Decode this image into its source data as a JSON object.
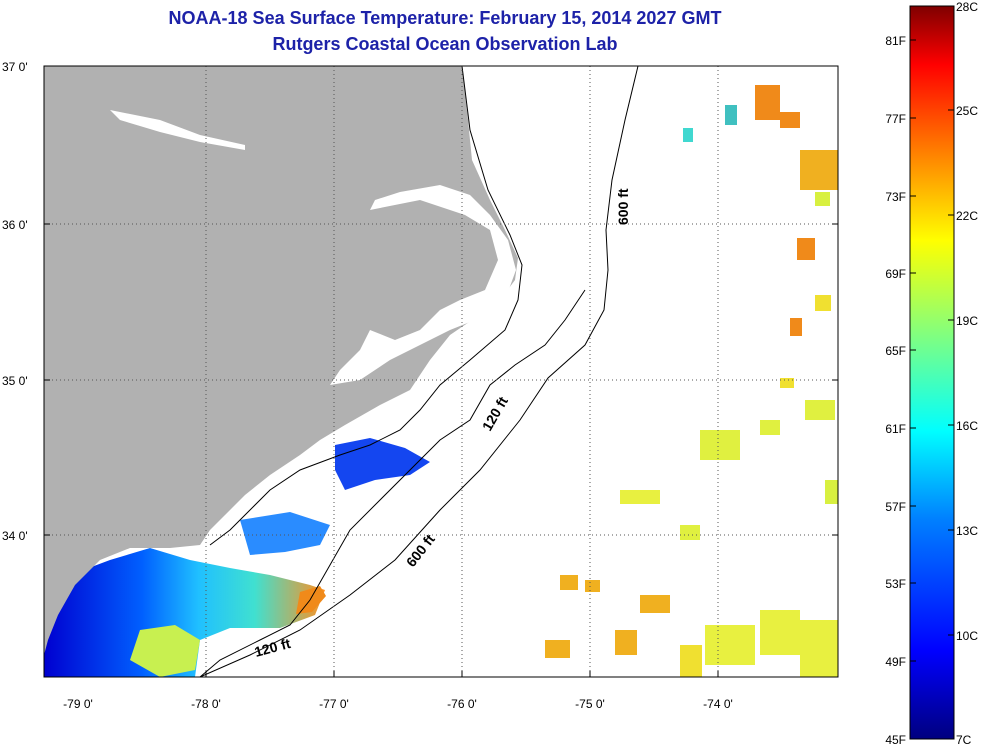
{
  "title": {
    "line1": "NOAA-18 Sea Surface Temperature:  February 15, 2014 2027 GMT",
    "line2": "Rutgers Coastal Ocean Observation Lab"
  },
  "map": {
    "lat_ticks": [
      "37 0'",
      "36 0'",
      "35 0'",
      "34 0'"
    ],
    "lon_ticks": [
      "-79 0'",
      "-78 0'",
      "-77 0'",
      "-76 0'",
      "-75 0'",
      "-74 0'"
    ],
    "contour_labels": {
      "c600_north": "600 ft",
      "c120_mid": "120 ft",
      "c600_south": "600 ft",
      "c120_south": "120 ft"
    },
    "colors": {
      "land": "#b1b1b1",
      "ocean": "#ffffff",
      "grid": "#555555"
    }
  },
  "colorbar": {
    "fahrenheit": [
      "81F",
      "77F",
      "73F",
      "69F",
      "65F",
      "61F",
      "57F",
      "53F",
      "49F",
      "45F"
    ],
    "celsius": [
      "28C",
      "25C",
      "22C",
      "19C",
      "16C",
      "13C",
      "10C",
      "7C"
    ],
    "gradient": [
      "#00007f",
      "#0000ff",
      "#0080ff",
      "#00ffff",
      "#80ff80",
      "#ffff00",
      "#ff8000",
      "#ff0000",
      "#7f0000"
    ]
  }
}
